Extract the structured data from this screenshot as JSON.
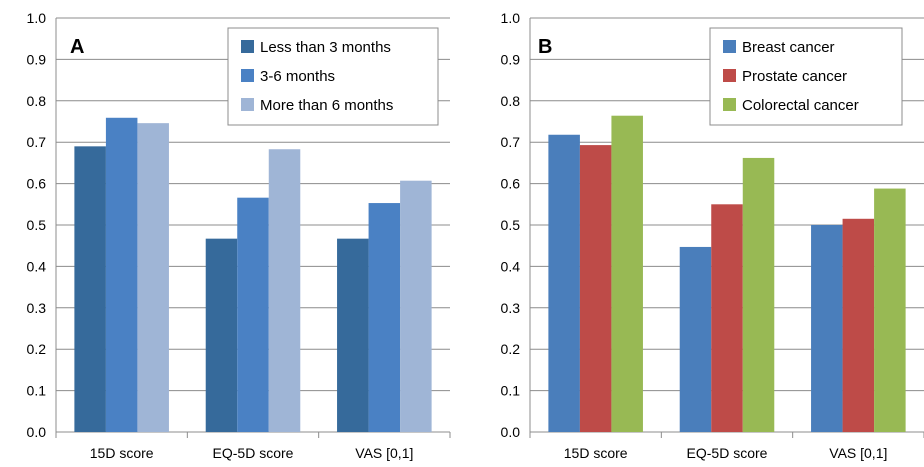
{
  "chart_data": [
    {
      "panel_label": "A",
      "type": "bar",
      "categories": [
        "15D score",
        "EQ-5D score",
        "VAS [0,1]"
      ],
      "series": [
        {
          "name": "Less than 3 months",
          "color": "#366A9B",
          "values": [
            0.69,
            0.467,
            0.467
          ]
        },
        {
          "name": "3-6 months",
          "color": "#4A81C4",
          "values": [
            0.759,
            0.566,
            0.553
          ]
        },
        {
          "name": "More than 6 months",
          "color": "#9FB5D6",
          "values": [
            0.746,
            0.683,
            0.607
          ]
        }
      ],
      "ylim": [
        0,
        1.0
      ],
      "yticks": [
        "0.0",
        "0.1",
        "0.2",
        "0.3",
        "0.4",
        "0.5",
        "0.6",
        "0.7",
        "0.8",
        "0.9",
        "1.0"
      ],
      "grid": true,
      "legend": "top-right"
    },
    {
      "panel_label": "B",
      "type": "bar",
      "categories": [
        "15D score",
        "EQ-5D score",
        "VAS [0,1]"
      ],
      "series": [
        {
          "name": "Breast cancer",
          "color": "#4A7EBB",
          "values": [
            0.718,
            0.447,
            0.5
          ]
        },
        {
          "name": "Prostate cancer",
          "color": "#BE4B48",
          "values": [
            0.693,
            0.55,
            0.515
          ]
        },
        {
          "name": "Colorectal cancer",
          "color": "#98B954",
          "values": [
            0.764,
            0.662,
            0.588
          ]
        }
      ],
      "ylim": [
        0,
        1.0
      ],
      "yticks": [
        "0.0",
        "0.1",
        "0.2",
        "0.3",
        "0.4",
        "0.5",
        "0.6",
        "0.7",
        "0.8",
        "0.9",
        "1.0"
      ],
      "grid": true,
      "legend": "top-right"
    }
  ]
}
